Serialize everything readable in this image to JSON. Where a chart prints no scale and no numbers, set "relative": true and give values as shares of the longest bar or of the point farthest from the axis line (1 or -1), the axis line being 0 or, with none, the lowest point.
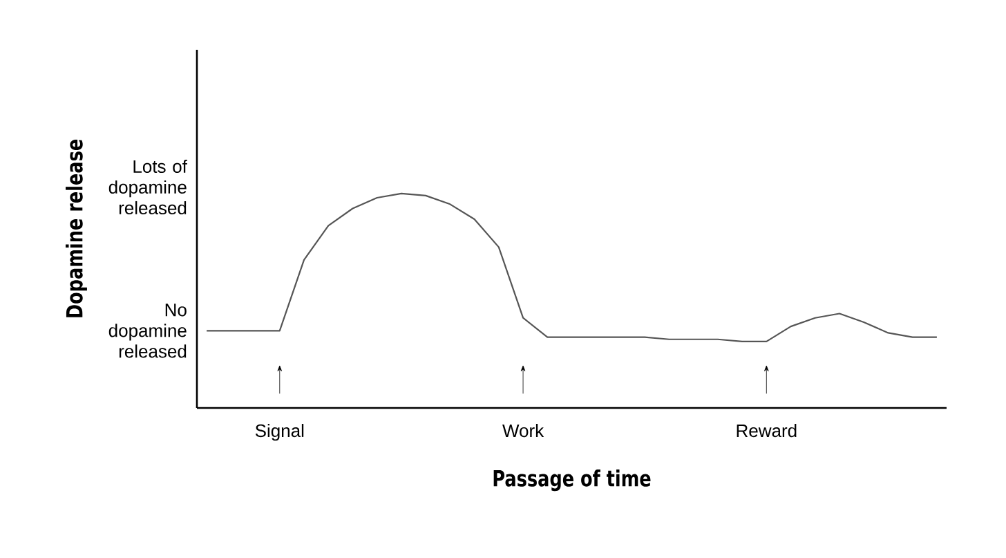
{
  "chart_data": {
    "type": "line",
    "relative": true,
    "xlabel": "Passage of time",
    "ylabel": "Dopamine release",
    "categories": [
      null,
      null,
      null,
      "Signal",
      null,
      null,
      null,
      null,
      null,
      null,
      null,
      null,
      null,
      "Work",
      null,
      null,
      null,
      null,
      null,
      null,
      null,
      null,
      null,
      "Reward",
      null,
      null,
      null,
      null,
      null,
      null,
      null
    ],
    "values": [
      0.36,
      0.36,
      0.36,
      0.36,
      0.69,
      0.85,
      0.93,
      0.98,
      1.0,
      0.99,
      0.95,
      0.88,
      0.75,
      0.42,
      0.33,
      0.33,
      0.33,
      0.33,
      0.33,
      0.32,
      0.32,
      0.32,
      0.31,
      0.31,
      0.38,
      0.42,
      0.44,
      0.4,
      0.35,
      0.33,
      0.33
    ],
    "color": "#555555",
    "line_style": "solid",
    "annotations": [
      "Lots of dopamine released",
      "No dopamine released"
    ]
  }
}
